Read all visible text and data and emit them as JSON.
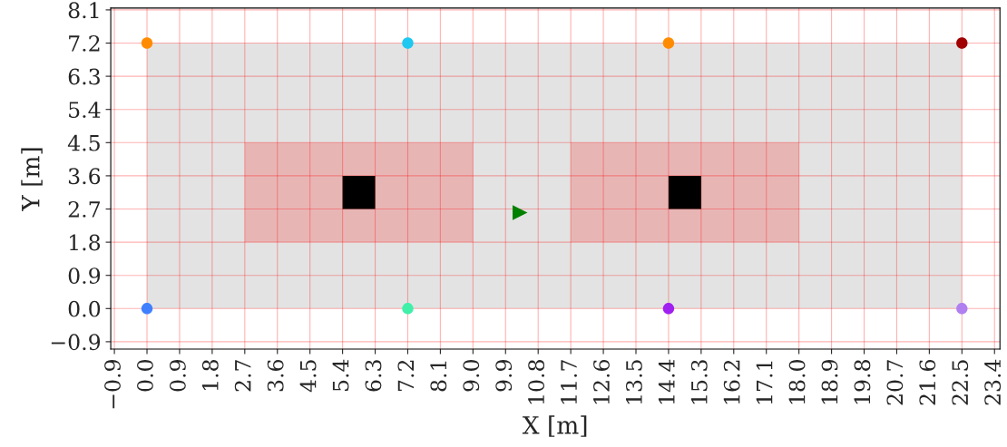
{
  "chart_data": {
    "type": "scatter",
    "xlabel": "X [m]",
    "ylabel": "Y [m]",
    "xlim": [
      -1.0,
      23.55
    ],
    "ylim": [
      -1.1,
      8.15
    ],
    "xticks": [
      {
        "value": -0.9,
        "label": "−0.9"
      },
      {
        "value": 0,
        "label": "0.0"
      },
      0.9,
      1.8,
      2.7,
      3.6,
      4.5,
      5.4,
      6.3,
      7.2,
      8.1,
      {
        "value": 9,
        "label": "9.0"
      },
      9.9,
      10.8,
      11.7,
      12.6,
      13.5,
      14.4,
      15.3,
      16.2,
      17.1,
      {
        "value": 18,
        "label": "18.0"
      },
      18.9,
      19.8,
      20.7,
      21.6,
      22.5,
      23.4
    ],
    "yticks": [
      {
        "value": -0.9,
        "label": "−0.9"
      },
      {
        "value": 0,
        "label": "0.0"
      },
      0.9,
      1.8,
      2.7,
      3.6,
      4.5,
      5.4,
      6.3,
      7.2,
      8.1
    ],
    "grid": true,
    "series": [
      {
        "type": "area",
        "color": "#e3e3e3",
        "x": [
          0,
          22.5,
          22.5,
          0
        ],
        "values": [
          0,
          0,
          7.2,
          7.2
        ]
      },
      {
        "type": "area",
        "color": "#e8b5b5",
        "x": [
          2.7,
          9,
          9,
          2.7
        ],
        "values": [
          1.8,
          1.8,
          4.5,
          4.5
        ]
      },
      {
        "type": "area",
        "color": "#e8b5b5",
        "x": [
          11.7,
          18,
          18,
          11.7
        ],
        "values": [
          1.8,
          1.8,
          4.5,
          4.5
        ]
      },
      {
        "type": "area",
        "color": "#000000",
        "x": [
          5.4,
          6.3,
          6.3,
          5.4
        ],
        "values": [
          2.7,
          2.7,
          3.6,
          3.6
        ]
      },
      {
        "type": "area",
        "color": "#000000",
        "x": [
          14.4,
          15.3,
          15.3,
          14.4
        ],
        "values": [
          2.7,
          2.7,
          3.6,
          3.6
        ]
      },
      {
        "marker": "circle",
        "x": [
          0,
          7.2,
          14.4,
          22.5,
          0,
          7.2,
          14.4,
          22.5
        ],
        "values": [
          7.2,
          7.2,
          7.2,
          7.2,
          0,
          0,
          0,
          0
        ],
        "colors": [
          "#ff8c00",
          "#1ec8f0",
          "#ff8c00",
          "#a00000",
          "#4080ff",
          "#40f0a8",
          "#a020f0",
          "#b080f0"
        ]
      },
      {
        "marker": "triangle",
        "x": [
          10.3
        ],
        "values": [
          2.6
        ],
        "colors": [
          "#008000"
        ]
      }
    ]
  }
}
